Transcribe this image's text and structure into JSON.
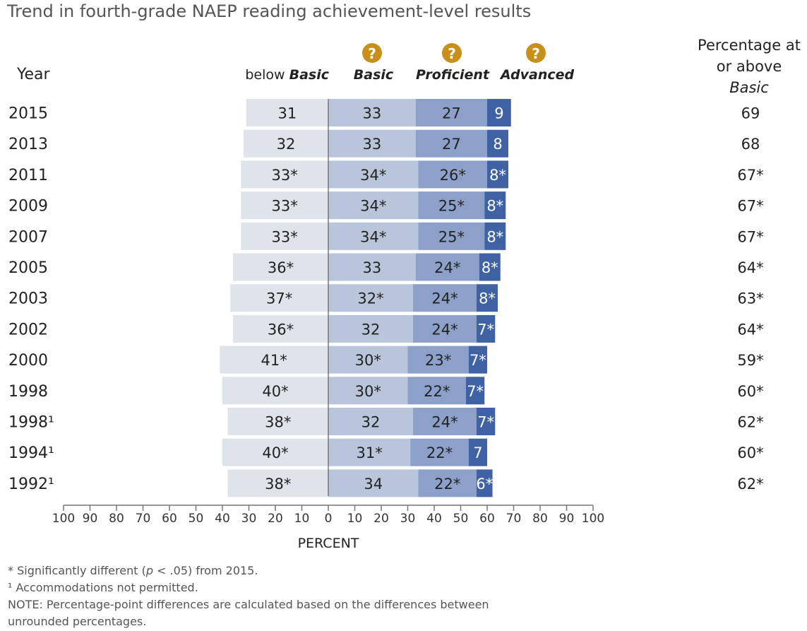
{
  "title": "Trend in fourth-grade NAEP reading achievement-level results",
  "headers": {
    "year": "Year",
    "below_basic_prefix": "below",
    "below_basic_italic": "Basic",
    "basic": "Basic",
    "proficient": "Proficient",
    "advanced": "Advanced",
    "pct_line1": "Percentage at",
    "pct_line2": "or above",
    "pct_line3": "Basic",
    "help_glyph": "?"
  },
  "axis": {
    "label": "PERCENT",
    "ticks": [
      "100",
      "90",
      "80",
      "70",
      "60",
      "50",
      "40",
      "30",
      "20",
      "10",
      "0",
      "10",
      "20",
      "30",
      "40",
      "50",
      "60",
      "70",
      "80",
      "90",
      "100"
    ]
  },
  "colors": {
    "below_basic": "#dfe3ea",
    "basic": "#b9c5da",
    "proficient": "#8ca0c9",
    "advanced": "#3e62a3",
    "help_icon": "#c8901a"
  },
  "chart_data": {
    "type": "bar",
    "subtype": "diverging-stacked-horizontal",
    "title": "Trend in fourth-grade NAEP reading achievement-level results",
    "xlabel": "PERCENT",
    "xlim": [
      -100,
      100
    ],
    "series_names": [
      "below Basic",
      "Basic",
      "Proficient",
      "Advanced"
    ],
    "rows": [
      {
        "year": "2015",
        "below_basic": 31,
        "basic": 33,
        "proficient": 27,
        "advanced": 9,
        "labels": [
          "31",
          "33",
          "27",
          "9"
        ],
        "pct_at_or_above": "69"
      },
      {
        "year": "2013",
        "below_basic": 32,
        "basic": 33,
        "proficient": 27,
        "advanced": 8,
        "labels": [
          "32",
          "33",
          "27",
          "8"
        ],
        "pct_at_or_above": "68"
      },
      {
        "year": "2011",
        "below_basic": 33,
        "basic": 34,
        "proficient": 26,
        "advanced": 8,
        "labels": [
          "33*",
          "34*",
          "26*",
          "8*"
        ],
        "pct_at_or_above": "67*"
      },
      {
        "year": "2009",
        "below_basic": 33,
        "basic": 34,
        "proficient": 25,
        "advanced": 8,
        "labels": [
          "33*",
          "34*",
          "25*",
          "8*"
        ],
        "pct_at_or_above": "67*"
      },
      {
        "year": "2007",
        "below_basic": 33,
        "basic": 34,
        "proficient": 25,
        "advanced": 8,
        "labels": [
          "33*",
          "34*",
          "25*",
          "8*"
        ],
        "pct_at_or_above": "67*"
      },
      {
        "year": "2005",
        "below_basic": 36,
        "basic": 33,
        "proficient": 24,
        "advanced": 8,
        "labels": [
          "36*",
          "33",
          "24*",
          "8*"
        ],
        "pct_at_or_above": "64*"
      },
      {
        "year": "2003",
        "below_basic": 37,
        "basic": 32,
        "proficient": 24,
        "advanced": 8,
        "labels": [
          "37*",
          "32*",
          "24*",
          "8*"
        ],
        "pct_at_or_above": "63*"
      },
      {
        "year": "2002",
        "below_basic": 36,
        "basic": 32,
        "proficient": 24,
        "advanced": 7,
        "labels": [
          "36*",
          "32",
          "24*",
          "7*"
        ],
        "pct_at_or_above": "64*"
      },
      {
        "year": "2000",
        "below_basic": 41,
        "basic": 30,
        "proficient": 23,
        "advanced": 7,
        "labels": [
          "41*",
          "30*",
          "23*",
          "7*"
        ],
        "pct_at_or_above": "59*"
      },
      {
        "year": "1998",
        "below_basic": 40,
        "basic": 30,
        "proficient": 22,
        "advanced": 7,
        "labels": [
          "40*",
          "30*",
          "22*",
          "7*"
        ],
        "pct_at_or_above": "60*"
      },
      {
        "year": "1998¹",
        "below_basic": 38,
        "basic": 32,
        "proficient": 24,
        "advanced": 7,
        "labels": [
          "38*",
          "32",
          "24*",
          "7*"
        ],
        "pct_at_or_above": "62*"
      },
      {
        "year": "1994¹",
        "below_basic": 40,
        "basic": 31,
        "proficient": 22,
        "advanced": 7,
        "labels": [
          "40*",
          "31*",
          "22*",
          "7"
        ],
        "pct_at_or_above": "60*"
      },
      {
        "year": "1992¹",
        "below_basic": 38,
        "basic": 34,
        "proficient": 22,
        "advanced": 6,
        "labels": [
          "38*",
          "34",
          "22*",
          "6*"
        ],
        "pct_at_or_above": "62*"
      }
    ]
  },
  "notes": {
    "sig_pre": "* Significantly different (",
    "sig_p": "p",
    "sig_post": " < .05) from 2015.",
    "accommodations": "¹ Accommodations not permitted.",
    "note_line1": "NOTE: Percentage-point differences are calculated based on the differences between",
    "note_line2": "unrounded percentages."
  }
}
